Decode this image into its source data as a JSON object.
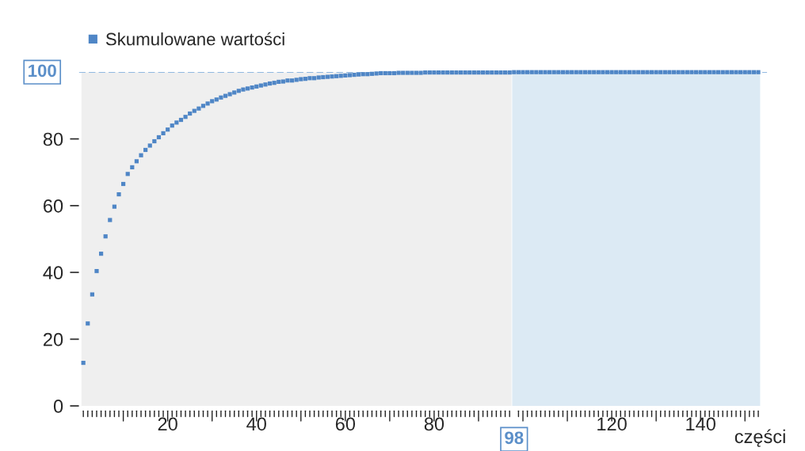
{
  "chart_data": {
    "type": "scatter",
    "xlabel": "części",
    "legend": "top left",
    "marker": "square",
    "x": [
      1,
      2,
      3,
      4,
      5,
      6,
      7,
      8,
      9,
      10,
      11,
      12,
      13,
      14,
      15,
      16,
      17,
      18,
      19,
      20,
      21,
      22,
      23,
      24,
      25,
      26,
      27,
      28,
      29,
      30,
      31,
      32,
      33,
      34,
      35,
      36,
      37,
      38,
      39,
      40,
      41,
      42,
      43,
      44,
      45,
      46,
      47,
      48,
      49,
      50,
      51,
      52,
      53,
      54,
      55,
      56,
      57,
      58,
      59,
      60,
      61,
      62,
      63,
      64,
      65,
      66,
      67,
      68,
      69,
      70,
      71,
      72,
      73,
      74,
      75,
      76,
      77,
      78,
      79,
      80,
      81,
      82,
      83,
      84,
      85,
      86,
      87,
      88,
      89,
      90,
      91,
      92,
      93,
      94,
      95,
      96,
      97,
      98,
      99,
      100,
      101,
      102,
      103,
      104,
      105,
      106,
      107,
      108,
      109,
      110,
      111,
      112,
      113,
      114,
      115,
      116,
      117,
      118,
      119,
      120,
      121,
      122,
      123,
      124,
      125,
      126,
      127,
      128,
      129,
      130,
      131,
      132,
      133,
      134,
      135,
      136,
      137,
      138,
      139,
      140,
      141,
      142,
      143,
      144,
      145,
      146,
      147,
      148,
      149,
      150,
      151,
      152,
      153
    ],
    "series": [
      {
        "name": "Skumulowane wartości",
        "color": "#4f86c6",
        "values": [
          12.9,
          24.7,
          33.4,
          40.4,
          45.6,
          50.8,
          55.7,
          59.7,
          63.4,
          66.5,
          69.5,
          71.5,
          73.3,
          75.1,
          76.7,
          78.0,
          79.3,
          80.5,
          81.7,
          82.8,
          84.0,
          84.9,
          85.7,
          86.6,
          87.6,
          88.4,
          89.1,
          89.9,
          90.6,
          91.3,
          91.8,
          92.4,
          92.9,
          93.4,
          93.9,
          94.4,
          94.8,
          95.1,
          95.4,
          95.7,
          96.0,
          96.3,
          96.6,
          96.8,
          97.1,
          97.2,
          97.5,
          97.5,
          97.7,
          97.9,
          98.0,
          98.2,
          98.2,
          98.4,
          98.5,
          98.6,
          98.7,
          98.8,
          98.9,
          99.0,
          99.1,
          99.2,
          99.3,
          99.4,
          99.4,
          99.5,
          99.6,
          99.7,
          99.7,
          99.7,
          99.7,
          99.8,
          99.8,
          99.8,
          99.8,
          99.8,
          99.8,
          99.9,
          99.9,
          99.9,
          99.9,
          99.9,
          99.9,
          99.9,
          99.9,
          99.9,
          99.9,
          99.9,
          99.9,
          99.9,
          99.9,
          99.9,
          99.9,
          99.9,
          99.9,
          99.9,
          99.9,
          100,
          100,
          100,
          100,
          100,
          100,
          100,
          100,
          100,
          100,
          100,
          100,
          100,
          100,
          100,
          100,
          100,
          100,
          100,
          100,
          100,
          100,
          100,
          100,
          100,
          100,
          100,
          100,
          100,
          100,
          100,
          100,
          100,
          100,
          100,
          100,
          100,
          100,
          100,
          100,
          100,
          100,
          100,
          100,
          100,
          100,
          100,
          100,
          100,
          100,
          100,
          100,
          100,
          100,
          100,
          100
        ]
      }
    ],
    "xlim": [
      0,
      155
    ],
    "ylim": [
      0,
      100
    ],
    "yticks": [
      0,
      20,
      40,
      60,
      80
    ],
    "xticks": [
      {
        "value": 1,
        "label": null
      },
      {
        "value": 2,
        "label": null
      },
      {
        "value": 3,
        "label": null
      },
      {
        "value": 4,
        "label": null
      },
      {
        "value": 5,
        "label": null
      },
      {
        "value": 6,
        "label": null
      },
      {
        "value": 7,
        "label": null
      },
      {
        "value": 8,
        "label": null
      },
      {
        "value": 9,
        "label": null
      },
      {
        "value": 10,
        "label": null
      },
      {
        "value": 11,
        "label": null
      },
      {
        "value": 12,
        "label": null
      },
      {
        "value": 13,
        "label": null
      },
      {
        "value": 14,
        "label": null
      },
      {
        "value": 15,
        "label": null
      },
      {
        "value": 16,
        "label": null
      },
      {
        "value": 17,
        "label": null
      },
      {
        "value": 18,
        "label": null
      },
      {
        "value": 19,
        "label": null
      },
      20,
      {
        "value": 21,
        "label": null
      },
      {
        "value": 22,
        "label": null
      },
      {
        "value": 23,
        "label": null
      },
      {
        "value": 24,
        "label": null
      },
      {
        "value": 25,
        "label": null
      },
      {
        "value": 26,
        "label": null
      },
      {
        "value": 27,
        "label": null
      },
      {
        "value": 28,
        "label": null
      },
      {
        "value": 29,
        "label": null
      },
      {
        "value": 30,
        "label": null
      },
      {
        "value": 31,
        "label": null
      },
      {
        "value": 32,
        "label": null
      },
      {
        "value": 33,
        "label": null
      },
      {
        "value": 34,
        "label": null
      },
      {
        "value": 35,
        "label": null
      },
      {
        "value": 36,
        "label": null
      },
      {
        "value": 37,
        "label": null
      },
      {
        "value": 38,
        "label": null
      },
      {
        "value": 39,
        "label": null
      },
      40,
      {
        "value": 41,
        "label": null
      },
      {
        "value": 42,
        "label": null
      },
      {
        "value": 43,
        "label": null
      },
      {
        "value": 44,
        "label": null
      },
      {
        "value": 45,
        "label": null
      },
      {
        "value": 46,
        "label": null
      },
      {
        "value": 47,
        "label": null
      },
      {
        "value": 48,
        "label": null
      },
      {
        "value": 49,
        "label": null
      },
      {
        "value": 50,
        "label": null
      },
      {
        "value": 51,
        "label": null
      },
      {
        "value": 52,
        "label": null
      },
      {
        "value": 53,
        "label": null
      },
      {
        "value": 54,
        "label": null
      },
      {
        "value": 55,
        "label": null
      },
      {
        "value": 56,
        "label": null
      },
      {
        "value": 57,
        "label": null
      },
      {
        "value": 58,
        "label": null
      },
      {
        "value": 59,
        "label": null
      },
      60,
      {
        "value": 61,
        "label": null
      },
      {
        "value": 62,
        "label": null
      },
      {
        "value": 63,
        "label": null
      },
      {
        "value": 64,
        "label": null
      },
      {
        "value": 65,
        "label": null
      },
      {
        "value": 66,
        "label": null
      },
      {
        "value": 67,
        "label": null
      },
      {
        "value": 68,
        "label": null
      },
      {
        "value": 69,
        "label": null
      },
      {
        "value": 70,
        "label": null
      },
      {
        "value": 71,
        "label": null
      },
      {
        "value": 72,
        "label": null
      },
      {
        "value": 73,
        "label": null
      },
      {
        "value": 74,
        "label": null
      },
      {
        "value": 75,
        "label": null
      },
      {
        "value": 76,
        "label": null
      },
      {
        "value": 77,
        "label": null
      },
      {
        "value": 78,
        "label": null
      },
      {
        "value": 79,
        "label": null
      },
      80,
      {
        "value": 81,
        "label": null
      },
      {
        "value": 82,
        "label": null
      },
      {
        "value": 83,
        "label": null
      },
      {
        "value": 84,
        "label": null
      },
      {
        "value": 85,
        "label": null
      },
      {
        "value": 86,
        "label": null
      },
      {
        "value": 87,
        "label": null
      },
      {
        "value": 88,
        "label": null
      },
      {
        "value": 89,
        "label": null
      },
      {
        "value": 90,
        "label": null
      },
      {
        "value": 91,
        "label": null
      },
      {
        "value": 92,
        "label": null
      },
      {
        "value": 93,
        "label": null
      },
      {
        "value": 94,
        "label": null
      },
      {
        "value": 95,
        "label": null
      },
      {
        "value": 96,
        "label": null
      },
      {
        "value": 97,
        "label": null
      },
      {
        "value": 99,
        "label": null
      },
      {
        "value": 100,
        "label": null
      },
      {
        "value": 101,
        "label": null
      },
      {
        "value": 102,
        "label": null
      },
      {
        "value": 103,
        "label": null
      },
      {
        "value": 104,
        "label": null
      },
      {
        "value": 105,
        "label": null
      },
      {
        "value": 106,
        "label": null
      },
      {
        "value": 107,
        "label": null
      },
      {
        "value": 108,
        "label": null
      },
      {
        "value": 109,
        "label": null
      },
      {
        "value": 110,
        "label": null
      },
      {
        "value": 111,
        "label": null
      },
      {
        "value": 112,
        "label": null
      },
      {
        "value": 113,
        "label": null
      },
      {
        "value": 114,
        "label": null
      },
      {
        "value": 115,
        "label": null
      },
      {
        "value": 116,
        "label": null
      },
      {
        "value": 117,
        "label": null
      },
      {
        "value": 118,
        "label": null
      },
      {
        "value": 119,
        "label": null
      },
      120,
      {
        "value": 121,
        "label": null
      },
      {
        "value": 122,
        "label": null
      },
      {
        "value": 123,
        "label": null
      },
      {
        "value": 124,
        "label": null
      },
      {
        "value": 125,
        "label": null
      },
      {
        "value": 126,
        "label": null
      },
      {
        "value": 127,
        "label": null
      },
      {
        "value": 128,
        "label": null
      },
      {
        "value": 129,
        "label": null
      },
      {
        "value": 130,
        "label": null
      },
      {
        "value": 131,
        "label": null
      },
      {
        "value": 132,
        "label": null
      },
      {
        "value": 133,
        "label": null
      },
      {
        "value": 134,
        "label": null
      },
      {
        "value": 135,
        "label": null
      },
      {
        "value": 136,
        "label": null
      },
      {
        "value": 137,
        "label": null
      },
      {
        "value": 138,
        "label": null
      },
      {
        "value": 139,
        "label": null
      },
      140,
      {
        "value": 141,
        "label": null
      },
      {
        "value": 142,
        "label": null
      },
      {
        "value": 143,
        "label": null
      },
      {
        "value": 144,
        "label": null
      },
      {
        "value": 145,
        "label": null
      },
      {
        "value": 146,
        "label": null
      },
      {
        "value": 147,
        "label": null
      },
      {
        "value": 148,
        "label": null
      },
      {
        "value": 149,
        "label": null
      },
      {
        "value": 150,
        "label": null
      },
      {
        "value": 151,
        "label": null
      },
      {
        "value": 152,
        "label": null
      },
      {
        "value": 153,
        "label": null
      }
    ],
    "ref_lines": [
      {
        "axis": "y",
        "value": 100,
        "label": "100",
        "color": "#6fa3d8",
        "line_style": "dashed"
      }
    ],
    "bands": [
      {
        "axis": "x",
        "from": 1,
        "to": 97,
        "color": "#efefef"
      },
      {
        "axis": "x",
        "from": 98,
        "to": 153,
        "color": "#dceaf4",
        "label": "98"
      }
    ]
  }
}
